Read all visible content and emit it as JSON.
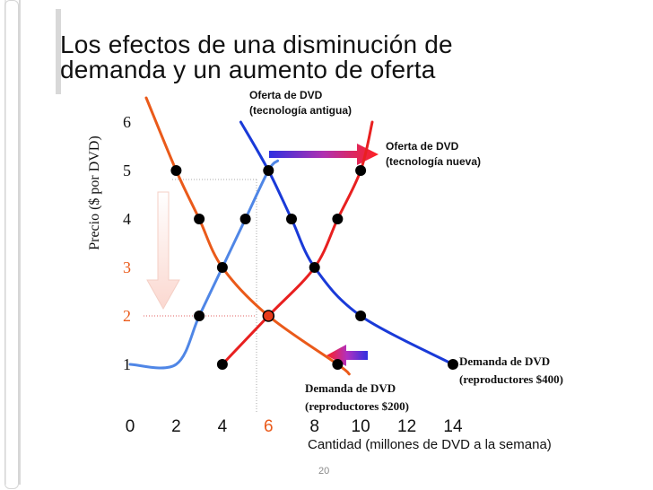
{
  "slide": {
    "title_line1": "Los efectos de una disminución de",
    "title_line2": "demanda y un aumento de oferta",
    "slide_number": "20"
  },
  "chart_data": {
    "type": "line",
    "title": "Los efectos de una disminución de demanda y un aumento de oferta",
    "xlabel": "Cantidad (millones de DVD a la semana)",
    "ylabel": "Precio ($ por DVD)",
    "xlim": [
      0,
      14
    ],
    "ylim": [
      0,
      6
    ],
    "x_ticks": [
      "0",
      "2",
      "4",
      "6",
      "8",
      "10",
      "12",
      "14"
    ],
    "y_ticks": [
      "1",
      "2",
      "3",
      "4",
      "5",
      "6"
    ],
    "highlight_tick_x": "6",
    "highlight_tick_y": [
      "2",
      "3"
    ],
    "series": [
      {
        "name": "Oferta de DVD (tecnología antigua)",
        "label_line1": "Oferta de DVD",
        "label_line2": "(tecnología antigua)",
        "color": "#4f86e6",
        "points": [
          [
            0,
            1
          ],
          [
            2,
            1
          ],
          [
            3,
            2
          ],
          [
            4,
            3
          ],
          [
            5,
            4
          ],
          [
            6,
            5
          ],
          [
            6.4,
            5.2
          ]
        ]
      },
      {
        "name": "Oferta de DVD (tecnología nueva)",
        "label_line1": "Oferta de DVD",
        "label_line2": "(tecnología nueva)",
        "color": "#e82020",
        "points": [
          [
            4,
            1
          ],
          [
            6,
            2
          ],
          [
            8,
            3
          ],
          [
            9,
            4
          ],
          [
            10,
            5
          ],
          [
            10.5,
            6
          ]
        ]
      },
      {
        "name": "Demanda de DVD (reproductores $400)",
        "label_line1": "Demanda de DVD",
        "label_line2": "(reproductores $400)",
        "color": "#1a3ad8",
        "points": [
          [
            4.8,
            6
          ],
          [
            6,
            5
          ],
          [
            7,
            4
          ],
          [
            8,
            3
          ],
          [
            10,
            2
          ],
          [
            14,
            1
          ]
        ]
      },
      {
        "name": "Demanda de DVD (reproductores $200)",
        "label_line1": "Demanda de DVD",
        "label_line2": "(reproductores $200)",
        "color": "#ea5a1a",
        "points": [
          [
            0.7,
            6.5
          ],
          [
            2,
            5
          ],
          [
            3,
            4
          ],
          [
            4,
            3
          ],
          [
            6,
            2
          ],
          [
            9,
            1
          ],
          [
            9.5,
            0.8
          ]
        ]
      }
    ],
    "markers": [
      [
        2,
        5
      ],
      [
        6,
        5
      ],
      [
        10,
        5
      ],
      [
        3,
        4
      ],
      [
        5,
        4
      ],
      [
        7,
        4
      ],
      [
        9,
        4
      ],
      [
        4,
        3
      ],
      [
        8,
        3
      ],
      [
        3,
        2
      ],
      [
        6,
        2
      ],
      [
        10,
        2
      ],
      [
        4,
        1
      ],
      [
        9,
        1
      ],
      [
        14,
        1
      ]
    ],
    "equilibrium_new": [
      6,
      2
    ],
    "equilibrium_old": [
      6,
      5
    ]
  }
}
